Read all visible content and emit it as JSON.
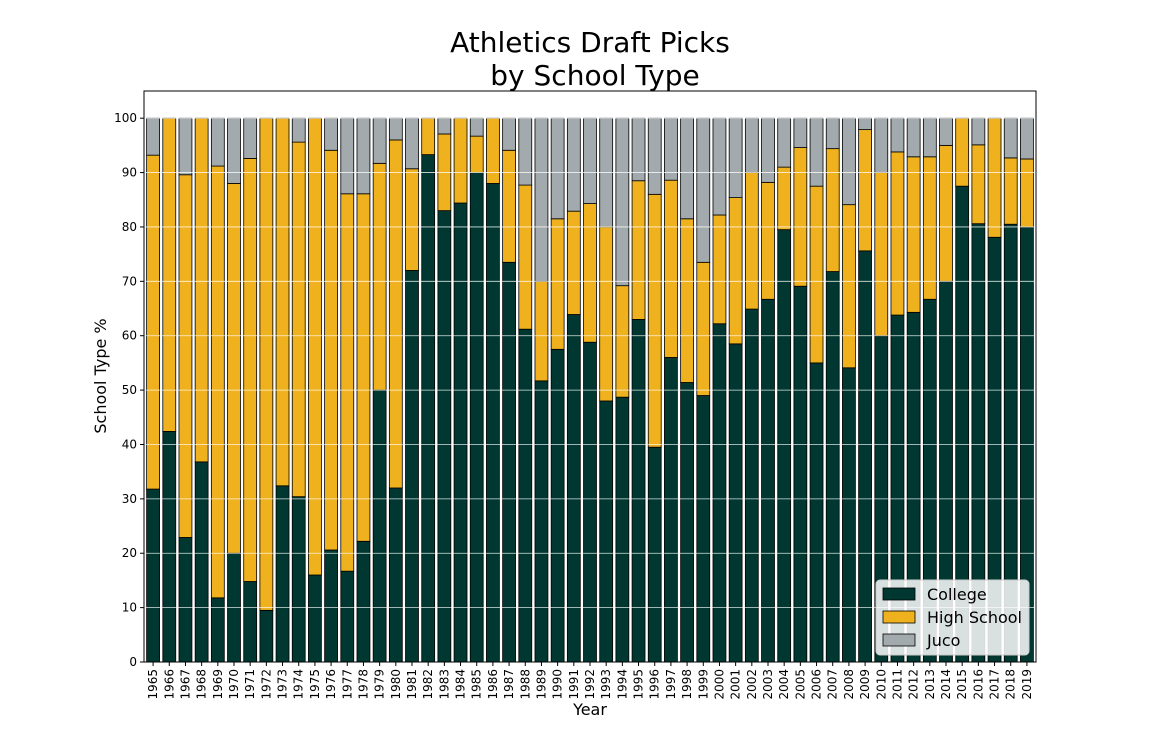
{
  "chart_data": {
    "type": "bar",
    "stacked": true,
    "title": [
      "Athletics Draft Picks",
      "by School Type"
    ],
    "xlabel": "Year",
    "ylabel": "School Type %",
    "ylim": [
      0,
      105
    ],
    "yticks": [
      0,
      10,
      20,
      30,
      40,
      50,
      60,
      70,
      80,
      90,
      100
    ],
    "grid": "y",
    "legend_position": "lower-right",
    "colors": {
      "College": "#003831",
      "High School": "#EFB21E",
      "Juco": "#A2AAAD",
      "grid": "#ffffff",
      "edge": "#000000"
    },
    "categories": [
      "1965",
      "1966",
      "1967",
      "1968",
      "1969",
      "1970",
      "1971",
      "1972",
      "1973",
      "1974",
      "1975",
      "1976",
      "1977",
      "1978",
      "1979",
      "1980",
      "1981",
      "1982",
      "1983",
      "1984",
      "1985",
      "1986",
      "1987",
      "1988",
      "1989",
      "1990",
      "1991",
      "1992",
      "1993",
      "1994",
      "1995",
      "1996",
      "1997",
      "1998",
      "1999",
      "2000",
      "2001",
      "2002",
      "2003",
      "2004",
      "2005",
      "2006",
      "2007",
      "2008",
      "2009",
      "2010",
      "2011",
      "2012",
      "2013",
      "2014",
      "2015",
      "2016",
      "2017",
      "2018",
      "2019"
    ],
    "series": [
      {
        "name": "College",
        "values": [
          31.8,
          42.4,
          22.9,
          36.8,
          11.8,
          20.0,
          14.8,
          9.5,
          32.4,
          30.4,
          16.0,
          20.6,
          16.7,
          22.2,
          50.0,
          32.0,
          72.0,
          93.3,
          83.0,
          84.4,
          90.0,
          88.0,
          73.5,
          61.2,
          51.7,
          57.5,
          63.9,
          58.8,
          48.0,
          48.7,
          63.0,
          39.5,
          56.0,
          51.4,
          49.0,
          62.2,
          58.5,
          64.9,
          66.7,
          79.5,
          69.1,
          55.0,
          71.8,
          54.1,
          75.6,
          60.0,
          63.8,
          64.3,
          66.7,
          70.0,
          87.5,
          80.6,
          78.1,
          80.5,
          80.0
        ]
      },
      {
        "name": "High School",
        "values": [
          61.4,
          57.6,
          66.7,
          63.2,
          79.4,
          68.0,
          77.8,
          90.5,
          67.6,
          65.2,
          84.0,
          73.5,
          69.4,
          63.9,
          41.7,
          64.0,
          18.7,
          6.7,
          14.1,
          15.6,
          6.7,
          12.0,
          20.6,
          26.5,
          18.3,
          24.0,
          19.0,
          25.5,
          32.0,
          20.5,
          25.5,
          46.5,
          32.6,
          30.1,
          24.5,
          20.0,
          26.9,
          25.1,
          21.5,
          11.5,
          25.5,
          32.5,
          22.6,
          30.0,
          22.3,
          30.0,
          30.0,
          28.6,
          26.2,
          25.0,
          12.5,
          14.5,
          21.9,
          12.2,
          12.5
        ]
      },
      {
        "name": "Juco",
        "values": [
          6.8,
          0,
          10.4,
          0,
          8.8,
          12.0,
          7.4,
          0,
          0,
          4.4,
          0,
          5.9,
          13.9,
          13.9,
          8.3,
          4.0,
          9.3,
          0,
          2.9,
          0,
          3.3,
          0,
          5.9,
          12.3,
          30.0,
          18.5,
          17.1,
          15.7,
          20.0,
          30.8,
          11.5,
          14.0,
          11.4,
          18.5,
          26.5,
          17.8,
          14.6,
          10.0,
          11.8,
          9.0,
          5.4,
          12.5,
          5.6,
          15.9,
          2.1,
          10.0,
          6.2,
          7.1,
          7.1,
          5.0,
          0,
          4.9,
          0,
          7.3,
          7.5
        ]
      }
    ]
  }
}
